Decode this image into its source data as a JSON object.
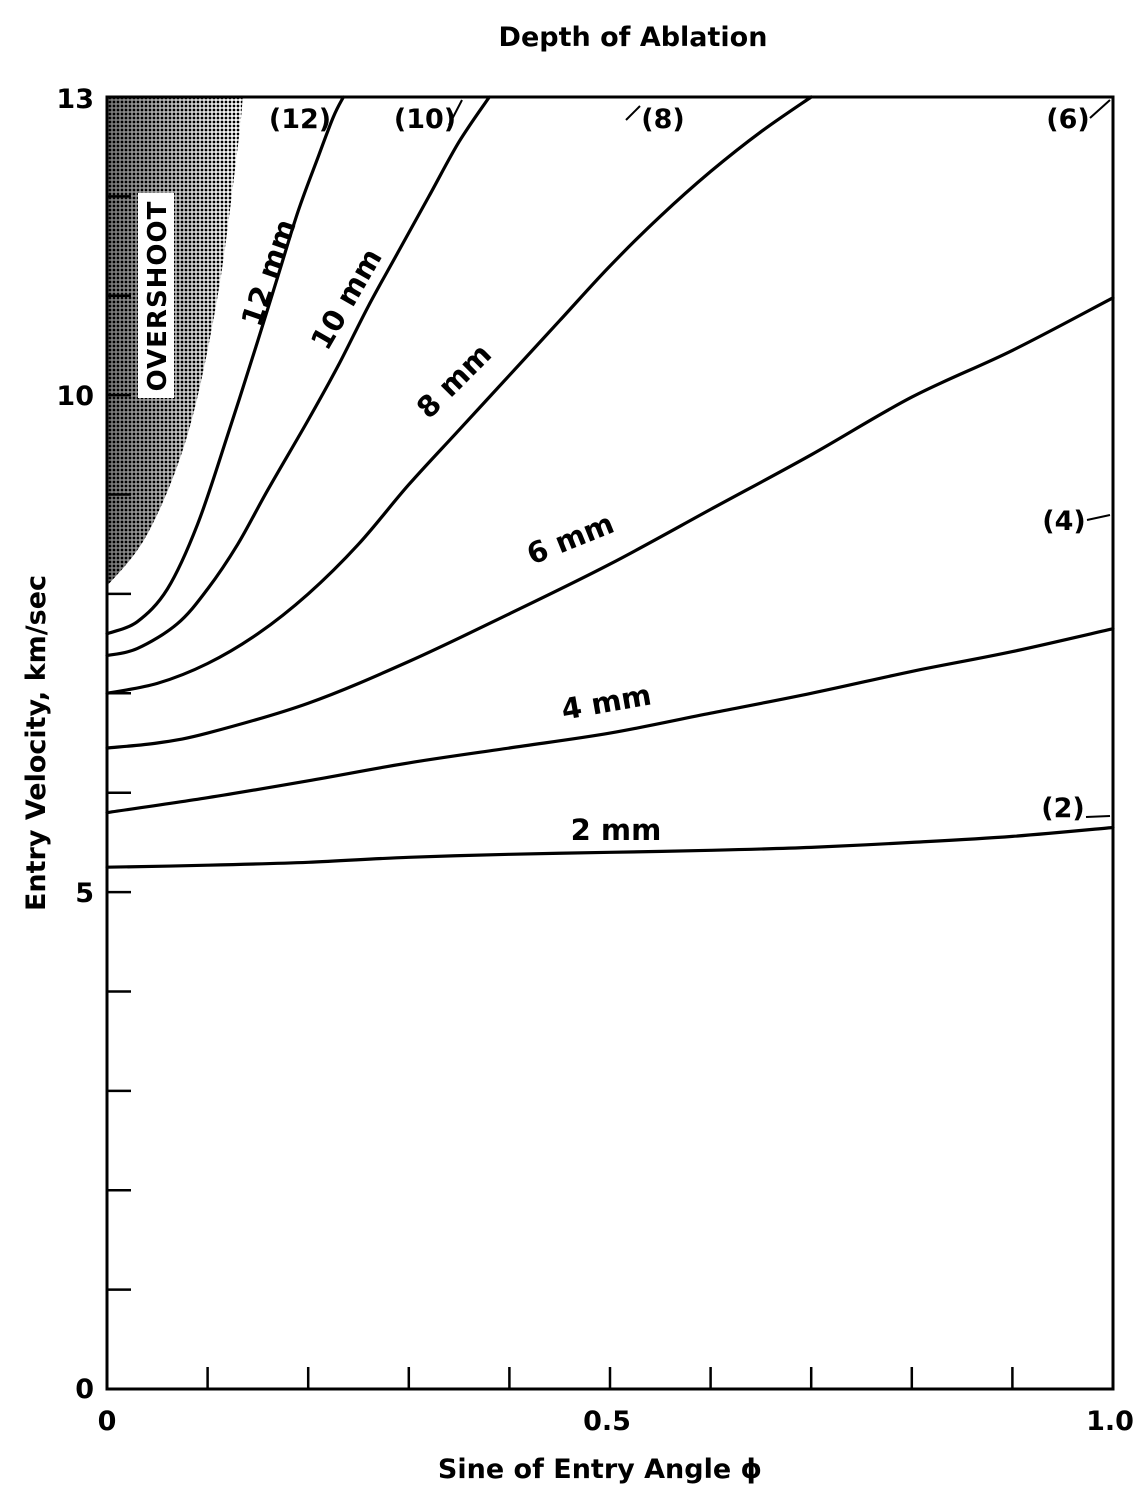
{
  "chart_data": {
    "type": "line",
    "title": "Depth of Ablation",
    "xlabel": "Sine of Entry Angle ϕ",
    "ylabel": "Entry Velocity, km/sec",
    "xlim": [
      0,
      1.0
    ],
    "ylim": [
      0,
      13
    ],
    "x_tick_labels": [
      "0",
      "0.5",
      "1.0"
    ],
    "y_tick_labels": [
      "0",
      "5",
      "10",
      "13"
    ],
    "x_minor_ticks": [
      0.1,
      0.2,
      0.3,
      0.4,
      0.6,
      0.7,
      0.8,
      0.9
    ],
    "y_minor_ticks": [
      1,
      2,
      3,
      4,
      6,
      7,
      8,
      9,
      11,
      12
    ],
    "grid": false,
    "legend": "none",
    "shaded_region": {
      "label": "OVERSHOOT",
      "x": [
        0,
        0.04,
        0.08,
        0.11,
        0.13,
        0.135
      ],
      "upper": [
        13,
        13,
        13,
        13,
        13,
        13
      ],
      "lower": [
        8.08,
        8.6,
        9.6,
        11.0,
        12.5,
        13
      ]
    },
    "series": [
      {
        "name": "2 mm",
        "x": [
          0,
          0.1,
          0.2,
          0.3,
          0.4,
          0.5,
          0.6,
          0.7,
          0.8,
          0.9,
          1.0
        ],
        "y": [
          5.25,
          5.27,
          5.3,
          5.35,
          5.38,
          5.4,
          5.42,
          5.45,
          5.5,
          5.56,
          5.65
        ]
      },
      {
        "name": "4 mm",
        "x": [
          0,
          0.1,
          0.2,
          0.3,
          0.4,
          0.5,
          0.6,
          0.7,
          0.8,
          0.9,
          1.0
        ],
        "y": [
          5.8,
          5.95,
          6.12,
          6.3,
          6.45,
          6.6,
          6.8,
          7.0,
          7.22,
          7.42,
          7.65
        ]
      },
      {
        "name": "6 mm",
        "x": [
          0,
          0.05,
          0.1,
          0.2,
          0.3,
          0.4,
          0.5,
          0.6,
          0.7,
          0.8,
          0.9,
          1.0
        ],
        "y": [
          6.45,
          6.5,
          6.6,
          6.9,
          7.32,
          7.8,
          8.3,
          8.85,
          9.4,
          9.98,
          10.45,
          10.98
        ]
      },
      {
        "name": "8 mm",
        "x": [
          0,
          0.05,
          0.1,
          0.15,
          0.2,
          0.25,
          0.3,
          0.35,
          0.4,
          0.45,
          0.5,
          0.55,
          0.6,
          0.65,
          0.7
        ],
        "y": [
          7.0,
          7.1,
          7.3,
          7.6,
          8.0,
          8.5,
          9.1,
          9.65,
          10.2,
          10.75,
          11.3,
          11.8,
          12.25,
          12.65,
          13.0
        ]
      },
      {
        "name": "10 mm",
        "x": [
          0,
          0.03,
          0.07,
          0.1,
          0.13,
          0.16,
          0.2,
          0.23,
          0.26,
          0.29,
          0.32,
          0.35,
          0.38
        ],
        "y": [
          7.38,
          7.45,
          7.7,
          8.05,
          8.5,
          9.05,
          9.75,
          10.3,
          10.9,
          11.45,
          12.0,
          12.55,
          13.0
        ]
      },
      {
        "name": "12 mm",
        "x": [
          0,
          0.03,
          0.06,
          0.09,
          0.12,
          0.15,
          0.17,
          0.19,
          0.21,
          0.225,
          0.235
        ],
        "y": [
          7.6,
          7.72,
          8.05,
          8.7,
          9.6,
          10.55,
          11.2,
          11.85,
          12.4,
          12.8,
          13.0
        ]
      }
    ],
    "annotations": [
      "OVERSHOOT",
      "(12)",
      "(10)",
      "(8)",
      "(6)",
      "(4)",
      "(2)"
    ]
  }
}
